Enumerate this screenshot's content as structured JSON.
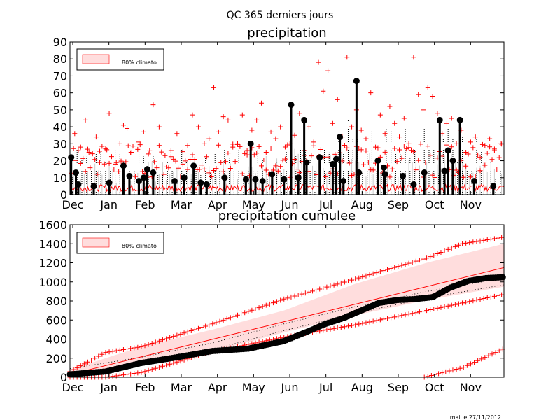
{
  "figure": {
    "suptitle": "QC 365 derniers jours",
    "footer": "mai le 27/11/2012"
  },
  "colors": {
    "red": "#ff0000",
    "band": "#ffdddd",
    "black": "#000000",
    "grey": "#cccccc"
  },
  "chart_data": [
    {
      "type": "bar",
      "title": "precipitation",
      "xlabel": "",
      "ylabel": "",
      "ylim": [
        0,
        90
      ],
      "yticks": [
        "0",
        "10",
        "20",
        "30",
        "40",
        "50",
        "60",
        "70",
        "80",
        "90"
      ],
      "xticks": [
        "Dec",
        "Jan",
        "Feb",
        "Mar",
        "Apr",
        "May",
        "Jun",
        "Jul",
        "Aug",
        "Sep",
        "Oct",
        "Nov"
      ],
      "legend": {
        "label": "80% climato",
        "placement": "top-left"
      },
      "grid": false,
      "series": [
        {
          "kind": "observed-daily-stems",
          "points": [
            {
              "day": 1,
              "value": 22
            },
            {
              "day": 5,
              "value": 13
            },
            {
              "day": 7,
              "value": 6
            },
            {
              "day": 20,
              "value": 5
            },
            {
              "day": 33,
              "value": 7
            },
            {
              "day": 45,
              "value": 17
            },
            {
              "day": 50,
              "value": 11
            },
            {
              "day": 58,
              "value": 8
            },
            {
              "day": 62,
              "value": 10
            },
            {
              "day": 65,
              "value": 15
            },
            {
              "day": 70,
              "value": 13
            },
            {
              "day": 88,
              "value": 8
            },
            {
              "day": 96,
              "value": 10
            },
            {
              "day": 104,
              "value": 17
            },
            {
              "day": 110,
              "value": 7
            },
            {
              "day": 115,
              "value": 6
            },
            {
              "day": 130,
              "value": 10
            },
            {
              "day": 148,
              "value": 9
            },
            {
              "day": 152,
              "value": 30
            },
            {
              "day": 156,
              "value": 9
            },
            {
              "day": 162,
              "value": 8
            },
            {
              "day": 170,
              "value": 12
            },
            {
              "day": 180,
              "value": 9
            },
            {
              "day": 186,
              "value": 53
            },
            {
              "day": 192,
              "value": 10
            },
            {
              "day": 197,
              "value": 44
            },
            {
              "day": 199,
              "value": 19
            },
            {
              "day": 210,
              "value": 22
            },
            {
              "day": 221,
              "value": 18
            },
            {
              "day": 224,
              "value": 21
            },
            {
              "day": 227,
              "value": 34
            },
            {
              "day": 230,
              "value": 8
            },
            {
              "day": 241,
              "value": 67
            },
            {
              "day": 243,
              "value": 13
            },
            {
              "day": 259,
              "value": 20
            },
            {
              "day": 264,
              "value": 16
            },
            {
              "day": 265,
              "value": 12
            },
            {
              "day": 280,
              "value": 11
            },
            {
              "day": 289,
              "value": 6
            },
            {
              "day": 298,
              "value": 13
            },
            {
              "day": 311,
              "value": 44
            },
            {
              "day": 315,
              "value": 14
            },
            {
              "day": 318,
              "value": 26
            },
            {
              "day": 322,
              "value": 20
            },
            {
              "day": 328,
              "value": 44
            },
            {
              "day": 340,
              "value": 8
            },
            {
              "day": 356,
              "value": 5
            }
          ]
        },
        {
          "kind": "climato-record-max-markers",
          "points": [
            {
              "day": 4,
              "value": 36
            },
            {
              "day": 9,
              "value": 28
            },
            {
              "day": 13,
              "value": 44
            },
            {
              "day": 16,
              "value": 25
            },
            {
              "day": 22,
              "value": 34
            },
            {
              "day": 25,
              "value": 19
            },
            {
              "day": 30,
              "value": 27
            },
            {
              "day": 33,
              "value": 48
            },
            {
              "day": 38,
              "value": 18
            },
            {
              "day": 42,
              "value": 30
            },
            {
              "day": 45,
              "value": 41
            },
            {
              "day": 48,
              "value": 39
            },
            {
              "day": 52,
              "value": 25
            },
            {
              "day": 58,
              "value": 31
            },
            {
              "day": 62,
              "value": 37
            },
            {
              "day": 66,
              "value": 24
            },
            {
              "day": 70,
              "value": 53
            },
            {
              "day": 75,
              "value": 40
            },
            {
              "day": 80,
              "value": 23
            },
            {
              "day": 85,
              "value": 26
            },
            {
              "day": 90,
              "value": 36
            },
            {
              "day": 95,
              "value": 18
            },
            {
              "day": 99,
              "value": 29
            },
            {
              "day": 103,
              "value": 47
            },
            {
              "day": 108,
              "value": 40
            },
            {
              "day": 113,
              "value": 30
            },
            {
              "day": 117,
              "value": 33
            },
            {
              "day": 121,
              "value": 63
            },
            {
              "day": 125,
              "value": 37
            },
            {
              "day": 129,
              "value": 46
            },
            {
              "day": 133,
              "value": 44
            },
            {
              "day": 137,
              "value": 28
            },
            {
              "day": 141,
              "value": 30
            },
            {
              "day": 145,
              "value": 47
            },
            {
              "day": 149,
              "value": 26
            },
            {
              "day": 153,
              "value": 38
            },
            {
              "day": 157,
              "value": 44
            },
            {
              "day": 161,
              "value": 54
            },
            {
              "day": 165,
              "value": 25
            },
            {
              "day": 169,
              "value": 37
            },
            {
              "day": 173,
              "value": 33
            },
            {
              "day": 177,
              "value": 40
            },
            {
              "day": 181,
              "value": 21
            },
            {
              "day": 185,
              "value": 30
            },
            {
              "day": 189,
              "value": 35
            },
            {
              "day": 193,
              "value": 48
            },
            {
              "day": 197,
              "value": 26
            },
            {
              "day": 201,
              "value": 40
            },
            {
              "day": 205,
              "value": 31
            },
            {
              "day": 209,
              "value": 78
            },
            {
              "day": 213,
              "value": 61
            },
            {
              "day": 217,
              "value": 73
            },
            {
              "day": 221,
              "value": 42
            },
            {
              "day": 225,
              "value": 56
            },
            {
              "day": 229,
              "value": 34
            },
            {
              "day": 233,
              "value": 81
            },
            {
              "day": 237,
              "value": 40
            },
            {
              "day": 241,
              "value": 50
            },
            {
              "day": 245,
              "value": 38
            },
            {
              "day": 249,
              "value": 33
            },
            {
              "day": 253,
              "value": 60
            },
            {
              "day": 257,
              "value": 28
            },
            {
              "day": 261,
              "value": 47
            },
            {
              "day": 265,
              "value": 36
            },
            {
              "day": 269,
              "value": 52
            },
            {
              "day": 273,
              "value": 42
            },
            {
              "day": 277,
              "value": 34
            },
            {
              "day": 281,
              "value": 45
            },
            {
              "day": 285,
              "value": 30
            },
            {
              "day": 289,
              "value": 81
            },
            {
              "day": 293,
              "value": 59
            },
            {
              "day": 297,
              "value": 50
            },
            {
              "day": 301,
              "value": 63
            },
            {
              "day": 305,
              "value": 58
            },
            {
              "day": 309,
              "value": 48
            },
            {
              "day": 313,
              "value": 36
            },
            {
              "day": 317,
              "value": 42
            },
            {
              "day": 321,
              "value": 45
            },
            {
              "day": 325,
              "value": 30
            },
            {
              "day": 329,
              "value": 38
            },
            {
              "day": 333,
              "value": 25
            },
            {
              "day": 337,
              "value": 31
            },
            {
              "day": 341,
              "value": 34
            },
            {
              "day": 345,
              "value": 22
            },
            {
              "day": 349,
              "value": 29
            },
            {
              "day": 353,
              "value": 33
            },
            {
              "day": 357,
              "value": 26
            },
            {
              "day": 362,
              "value": 30
            }
          ]
        }
      ]
    },
    {
      "type": "line",
      "title": "precipitation cumulee",
      "xlabel": "",
      "ylabel": "",
      "ylim": [
        0,
        1600
      ],
      "yticks": [
        "0",
        "200",
        "400",
        "600",
        "800",
        "1000",
        "1200",
        "1400",
        "1600"
      ],
      "xticks": [
        "Dec",
        "Jan",
        "Feb",
        "Mar",
        "Apr",
        "May",
        "Jun",
        "Jul",
        "Aug",
        "Sep",
        "Oct",
        "Nov"
      ],
      "legend": {
        "label": "80% climato",
        "placement": "top-left"
      },
      "grid": false,
      "series": [
        {
          "kind": "observed-cumulative",
          "x": [
            0,
            30,
            60,
            90,
            120,
            150,
            180,
            200,
            215,
            230,
            245,
            260,
            275,
            290,
            305,
            320,
            335,
            350,
            365
          ],
          "y": [
            30,
            60,
            150,
            210,
            275,
            300,
            380,
            480,
            560,
            620,
            700,
            780,
            810,
            820,
            840,
            940,
            1010,
            1040,
            1050
          ]
        },
        {
          "kind": "climato-mean",
          "x": [
            0,
            365
          ],
          "y": [
            30,
            1150
          ]
        },
        {
          "kind": "band-upper",
          "x": [
            0,
            60,
            120,
            180,
            240,
            300,
            365
          ],
          "y": [
            80,
            320,
            500,
            700,
            980,
            1200,
            1400
          ]
        },
        {
          "kind": "band-lower",
          "x": [
            0,
            60,
            120,
            180,
            240,
            300,
            365
          ],
          "y": [
            0,
            120,
            270,
            470,
            650,
            810,
            950
          ]
        },
        {
          "kind": "record-max",
          "x": [
            0,
            30,
            60,
            120,
            180,
            240,
            300,
            330,
            365
          ],
          "y": [
            60,
            260,
            320,
            560,
            820,
            1030,
            1250,
            1400,
            1470
          ]
        },
        {
          "kind": "record-min",
          "x": [
            0,
            30,
            60,
            120,
            180,
            240,
            300,
            365
          ],
          "y": [
            0,
            0,
            50,
            270,
            420,
            550,
            700,
            870
          ]
        },
        {
          "kind": "record-min-partial-year",
          "x": [
            298,
            330,
            365
          ],
          "y": [
            0,
            100,
            300
          ]
        }
      ]
    }
  ]
}
